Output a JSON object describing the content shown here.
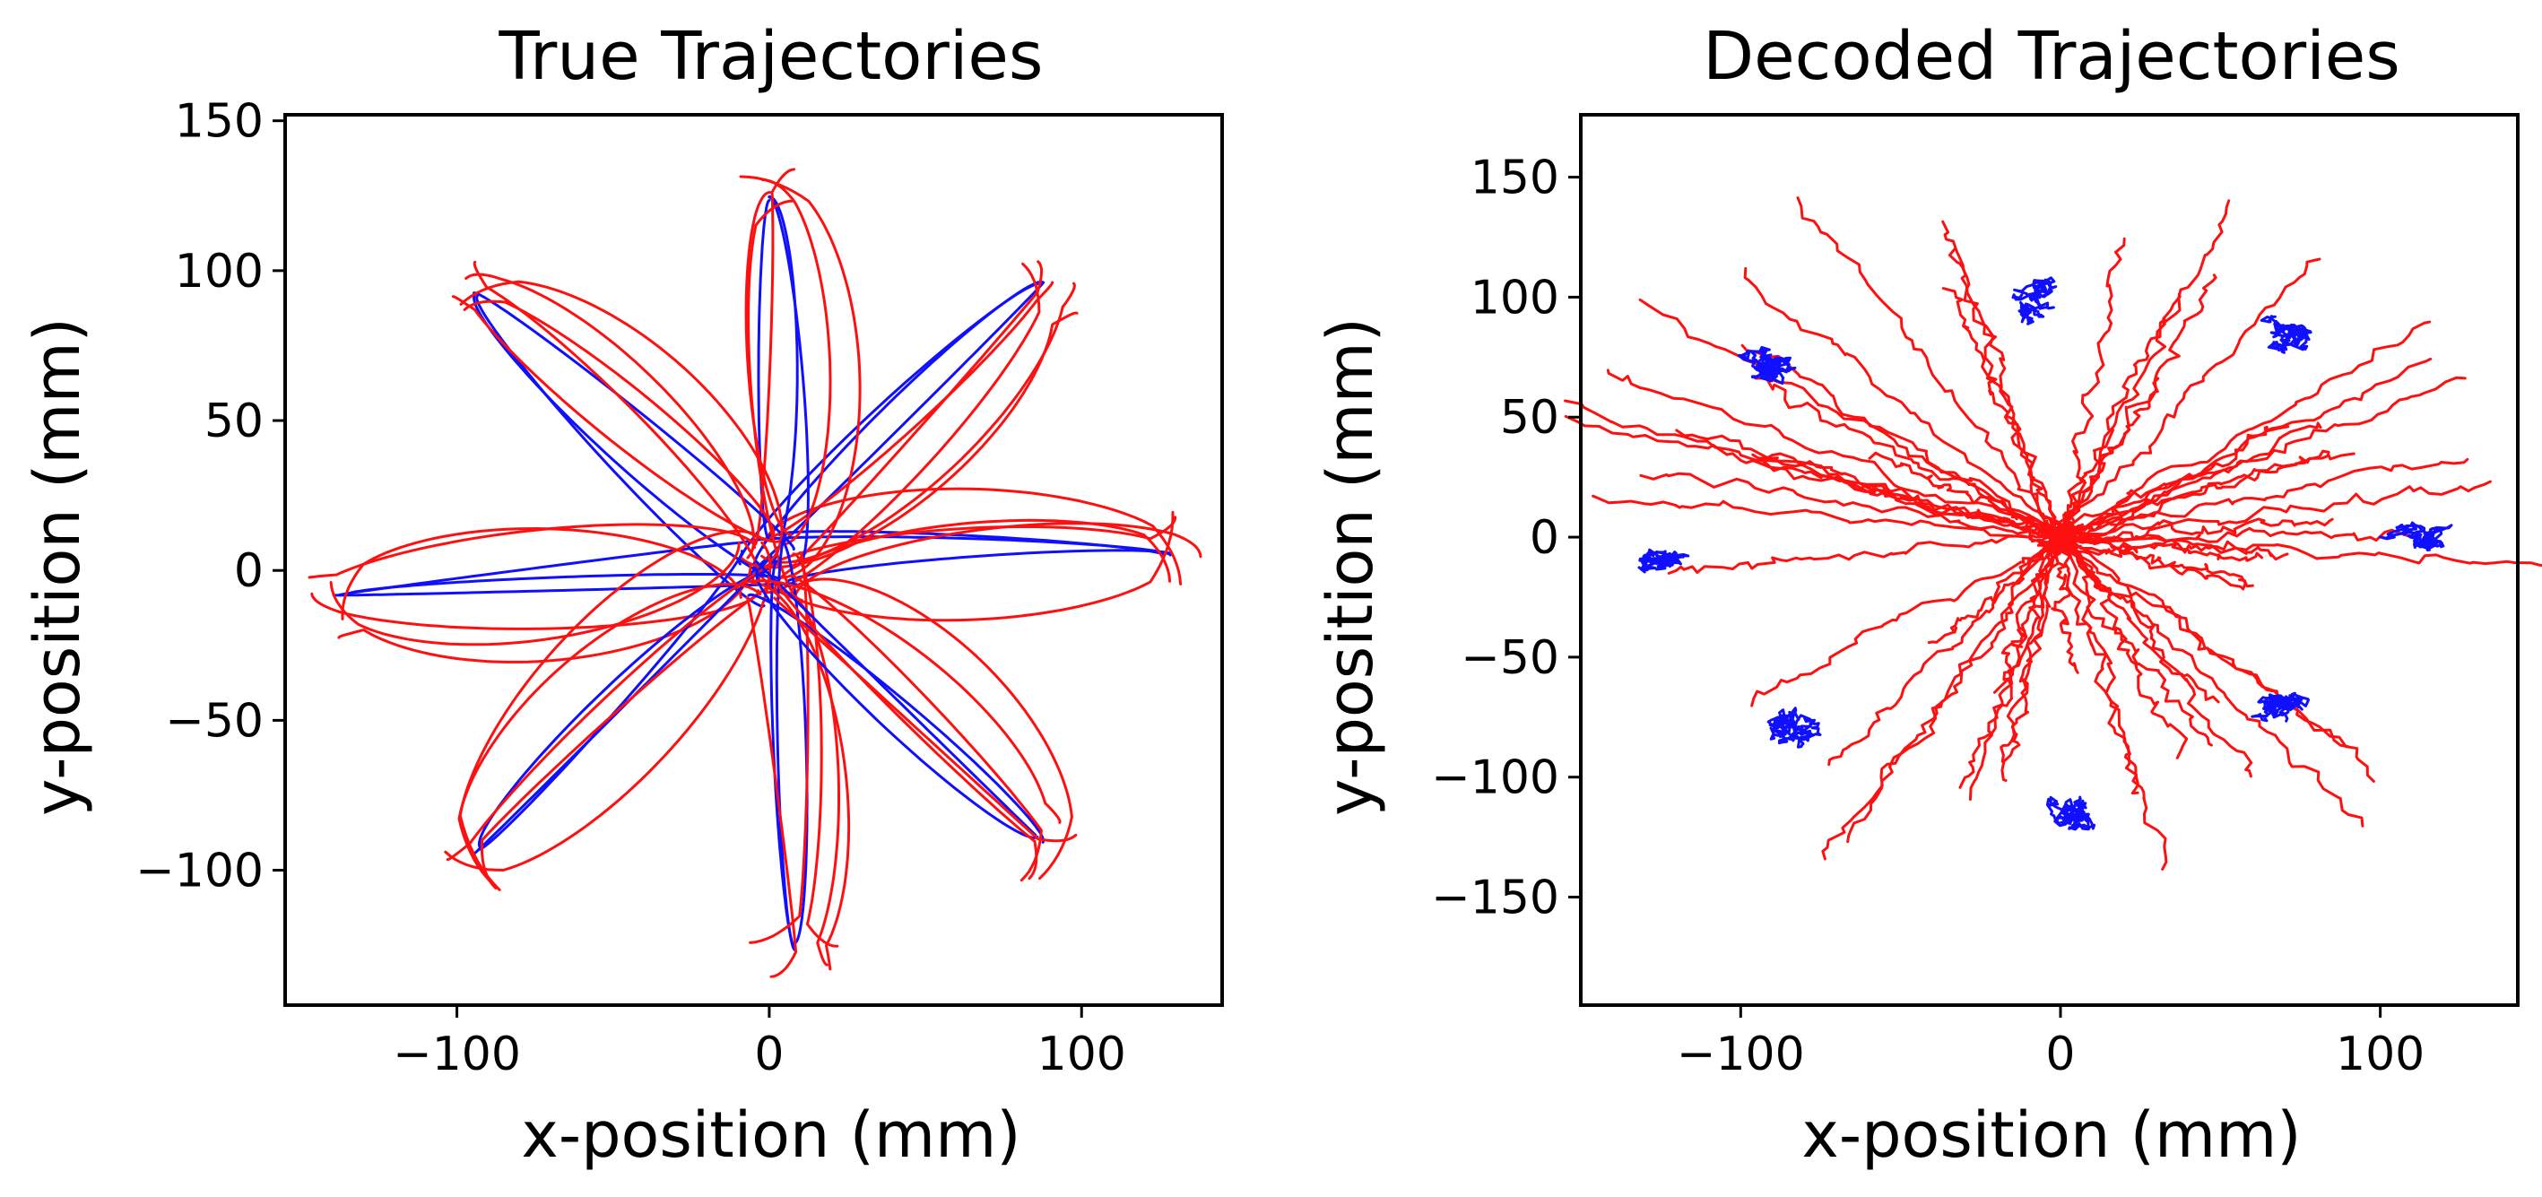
{
  "figure": {
    "colors": {
      "hold_trial": "#1010ff",
      "reach_trial": "#ff1010"
    }
  },
  "chart_data": [
    {
      "type": "line",
      "title": "True Trajectories",
      "xlabel": "x-position (mm)",
      "ylabel": "y-position (mm)",
      "xlim": [
        -155,
        145
      ],
      "ylim": [
        -145,
        152
      ],
      "xticks": [
        -100,
        0,
        100
      ],
      "yticks": [
        -100,
        -50,
        0,
        50,
        100,
        150
      ],
      "xtick_labels": [
        "−100",
        "0",
        "100"
      ],
      "ytick_labels": [
        "−100",
        "−50",
        "0",
        "50",
        "100",
        "150"
      ],
      "grid": false,
      "series_colors": [
        "#1010ff",
        "#ff1010"
      ],
      "targets_angle_deg": [
        0,
        45,
        90,
        135,
        180,
        225,
        270,
        315
      ],
      "target_endpoints": [
        {
          "x": 125,
          "y": 5
        },
        {
          "x": 85,
          "y": 93
        },
        {
          "x": 0,
          "y": 122
        },
        {
          "x": -92,
          "y": 90
        },
        {
          "x": -135,
          "y": -8
        },
        {
          "x": -92,
          "y": -92
        },
        {
          "x": 8,
          "y": -122
        },
        {
          "x": 85,
          "y": -88
        }
      ]
    },
    {
      "type": "line",
      "title": "Decoded Trajectories",
      "xlabel": "x-position (mm)",
      "ylabel": "y-position (mm)",
      "xlim": [
        -150,
        143
      ],
      "ylim": [
        -195,
        176
      ],
      "xticks": [
        -100,
        0,
        100
      ],
      "yticks": [
        -150,
        -100,
        -50,
        0,
        50,
        100,
        150
      ],
      "xtick_labels": [
        "−100",
        "0",
        "100"
      ],
      "ytick_labels": [
        "−150",
        "−100",
        "−50",
        "0",
        "50",
        "100",
        "150"
      ],
      "grid": false,
      "series_colors": [
        "#1010ff",
        "#ff1010"
      ],
      "hold_clusters": [
        {
          "x": 115,
          "y": 0
        },
        {
          "x": 75,
          "y": 85
        },
        {
          "x": -10,
          "y": 100
        },
        {
          "x": -90,
          "y": 70
        },
        {
          "x": -125,
          "y": -10
        },
        {
          "x": -85,
          "y": -80
        },
        {
          "x": 5,
          "y": -115
        },
        {
          "x": 70,
          "y": -70
        }
      ]
    }
  ]
}
